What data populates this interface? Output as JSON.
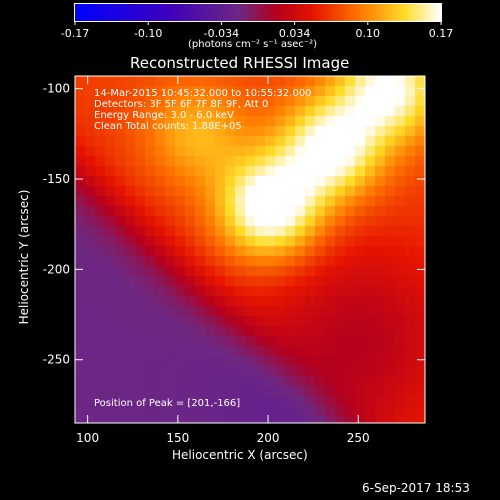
{
  "colorbar": {
    "tick_labels": [
      "-0.17",
      "-0.10",
      "-0.034",
      "0.034",
      "0.10",
      "0.17"
    ],
    "units_text": "(photons cm⁻² s⁻¹ asec⁻²)",
    "range": [
      -0.17,
      0.17
    ]
  },
  "chart_data": {
    "type": "heatmap",
    "title": "Reconstructed RHESSI Image",
    "xlabel": "Heliocentric X (arcsec)",
    "ylabel": "Heliocentric Y (arcsec)",
    "xlim": [
      93,
      287
    ],
    "ylim": [
      -285,
      -93
    ],
    "x_ticks": [
      "100",
      "150",
      "200",
      "250"
    ],
    "y_ticks": [
      "-100",
      "-150",
      "-200",
      "-250"
    ],
    "x_tick_values": [
      100,
      150,
      200,
      250
    ],
    "y_tick_values": [
      -100,
      -150,
      -200,
      -250
    ],
    "info_lines": [
      "14-Mar-2015 10:45:32.000 to 10:55:32.000",
      "Detectors: 3F 5F 6F 7F 8F 9F, Att 0",
      "Energy Range: 3.0 - 6.0 keV",
      "Clean    Total counts: 1.88E+05"
    ],
    "peak_text": "Position of Peak = [201,-166]",
    "sources": [
      {
        "x": 201,
        "y": -166,
        "peak": 0.17
      },
      {
        "x": 235,
        "y": -133,
        "peak": 0.155
      },
      {
        "x": 268,
        "y": -100,
        "peak": 0.15
      },
      {
        "x": 160,
        "y": -125,
        "peak": 0.1
      }
    ]
  },
  "footer": {
    "date_text": "6-Sep-2017 18:53"
  }
}
